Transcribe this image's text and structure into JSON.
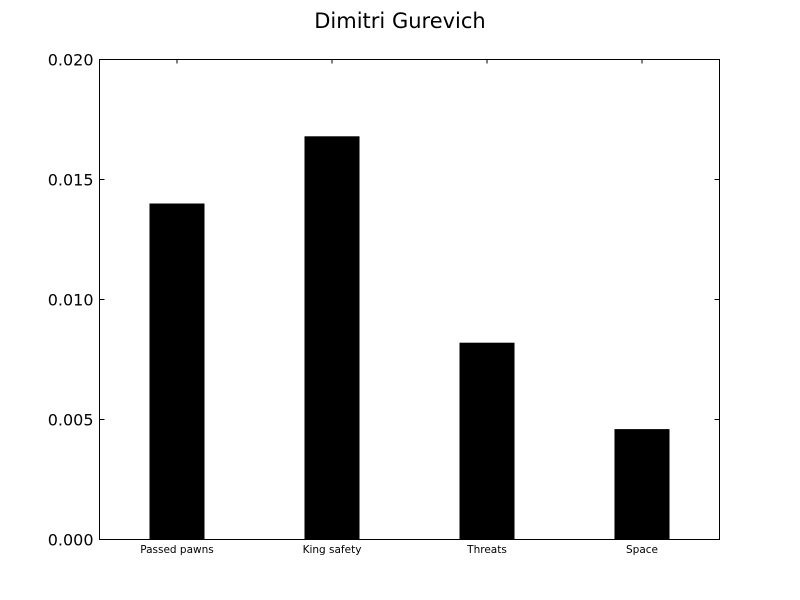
{
  "chart_data": {
    "type": "bar",
    "title": "Dimitri Gurevich",
    "xlabel": "",
    "ylabel": "",
    "categories": [
      "Passed pawns",
      "King safety",
      "Threats",
      "Space"
    ],
    "values": [
      0.014,
      0.0168,
      0.0082,
      0.0046
    ],
    "ylim": [
      0,
      0.02
    ],
    "yticks": [
      {
        "value": 0.0,
        "label": "0.000"
      },
      {
        "value": 0.005,
        "label": "0.005"
      },
      {
        "value": 0.01,
        "label": "0.010"
      },
      {
        "value": 0.015,
        "label": "0.015"
      },
      {
        "value": 0.02,
        "label": "0.020"
      }
    ],
    "bar_color": "#000000",
    "grid": false,
    "legend": "none"
  }
}
